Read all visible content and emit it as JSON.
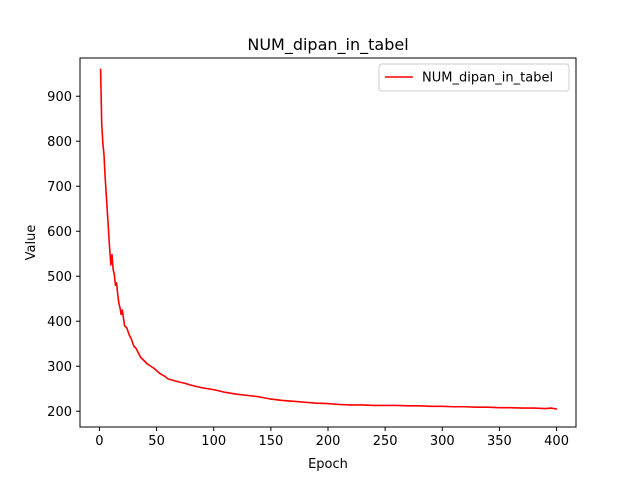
{
  "chart_data": {
    "type": "line",
    "title": "NUM_dipan_in_tabel",
    "xlabel": "Epoch",
    "ylabel": "Value",
    "xlim": [
      -17,
      417
    ],
    "ylim": [
      165,
      985
    ],
    "xticks": [
      0,
      50,
      100,
      150,
      200,
      250,
      300,
      350,
      400
    ],
    "xtick_labels": [
      "0",
      "50",
      "100",
      "150",
      "200",
      "250",
      "300",
      "350",
      "400"
    ],
    "yticks": [
      200,
      300,
      400,
      500,
      600,
      700,
      800,
      900
    ],
    "ytick_labels": [
      "200",
      "300",
      "400",
      "500",
      "600",
      "700",
      "800",
      "900"
    ],
    "grid": false,
    "legend": {
      "position": "top-right"
    },
    "series": [
      {
        "name": "NUM_dipan_in_tabel",
        "color": "#ff0000",
        "x": [
          1,
          2,
          3,
          4,
          5,
          6,
          7,
          8,
          9,
          10,
          11,
          12,
          13,
          14,
          15,
          16,
          17,
          18,
          19,
          20,
          22,
          24,
          26,
          28,
          30,
          32,
          34,
          36,
          38,
          40,
          42,
          45,
          48,
          51,
          54,
          57,
          60,
          65,
          70,
          75,
          80,
          85,
          90,
          95,
          100,
          110,
          120,
          130,
          140,
          150,
          160,
          170,
          180,
          190,
          200,
          210,
          220,
          230,
          240,
          250,
          260,
          270,
          280,
          290,
          300,
          310,
          320,
          330,
          340,
          350,
          360,
          370,
          380,
          390,
          395,
          400
        ],
        "y": [
          960,
          840,
          795,
          770,
          720,
          680,
          640,
          600,
          560,
          525,
          548,
          515,
          505,
          480,
          485,
          460,
          440,
          430,
          415,
          425,
          390,
          385,
          370,
          360,
          345,
          340,
          330,
          320,
          315,
          310,
          305,
          300,
          295,
          288,
          282,
          278,
          272,
          268,
          265,
          262,
          258,
          255,
          252,
          250,
          248,
          242,
          238,
          235,
          232,
          227,
          224,
          222,
          220,
          218,
          217,
          215,
          214,
          214,
          213,
          213,
          213,
          212,
          212,
          211,
          211,
          210,
          210,
          209,
          209,
          208,
          208,
          207,
          207,
          206,
          207,
          205
        ]
      }
    ]
  }
}
